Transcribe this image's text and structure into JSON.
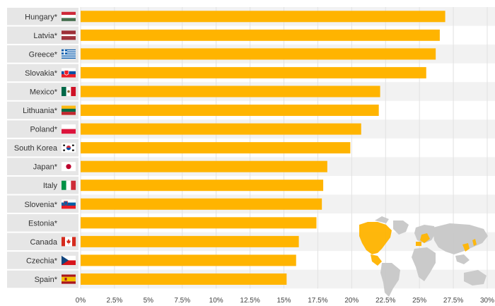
{
  "chart_data": {
    "type": "bar",
    "orientation": "horizontal",
    "categories": [
      "Hungary*",
      "Latvia*",
      "Greece*",
      "Slovakia*",
      "Mexico*",
      "Lithuania*",
      "Poland*",
      "South Korea",
      "Japan*",
      "Italy",
      "Slovenia*",
      "Estonia*",
      "Canada",
      "Czechia*",
      "Spain*"
    ],
    "values": [
      26.9,
      26.5,
      26.2,
      25.5,
      22.1,
      22.0,
      20.7,
      19.9,
      18.2,
      17.9,
      17.8,
      17.4,
      16.1,
      15.9,
      15.2
    ],
    "flags": [
      "hungary",
      "latvia",
      "greece",
      "slovakia",
      "mexico",
      "lithuania",
      "poland",
      "south-korea",
      "japan",
      "italy",
      "slovenia",
      "",
      "canada",
      "czechia",
      "spain"
    ],
    "xlim": [
      0,
      30
    ],
    "xticks": [
      "0%",
      "2.5%",
      "5%",
      "7.5%",
      "10%",
      "12.5%",
      "15%",
      "17.5%",
      "20%",
      "22.5%",
      "25%",
      "27.5%",
      "30%"
    ],
    "grid": true,
    "colors": {
      "bar": "#FFB400",
      "label_bg": "#E6E6E6",
      "stripe": "#F2F2F2",
      "map_land": "#C8C8C8",
      "map_highlight": "#FFB400"
    }
  }
}
